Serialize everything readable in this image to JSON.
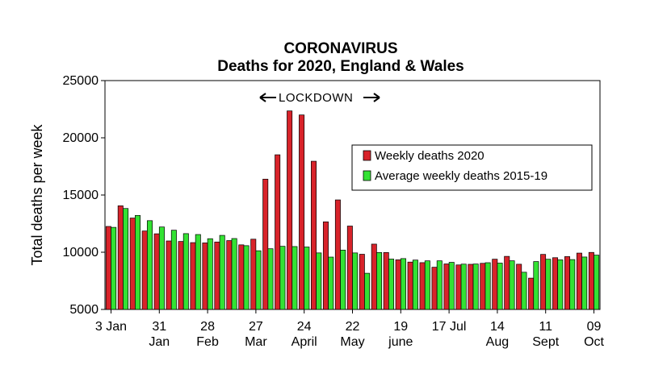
{
  "chart_data": {
    "type": "bar",
    "title": "CORONAVIRUS",
    "subtitle": "Deaths for 2020, England & Wales",
    "ylabel": "Total deaths per week",
    "xlabel": "",
    "ylim": [
      5000,
      25000
    ],
    "yticks": [
      "25000",
      "20000",
      "15000",
      "10000",
      "5000"
    ],
    "grid": false,
    "legend_position": "right",
    "annotation": "LOCKDOWN",
    "x_tick_labels": [
      {
        "index": 0,
        "day": "3 Jan",
        "month": ""
      },
      {
        "index": 4,
        "day": "31",
        "month": "Jan"
      },
      {
        "index": 8,
        "day": "28",
        "month": "Feb"
      },
      {
        "index": 12,
        "day": "27",
        "month": "Mar"
      },
      {
        "index": 16,
        "day": "24",
        "month": "April"
      },
      {
        "index": 20,
        "day": "22",
        "month": "May"
      },
      {
        "index": 24,
        "day": "19",
        "month": "june"
      },
      {
        "index": 28,
        "day": "17 Jul",
        "month": ""
      },
      {
        "index": 32,
        "day": "14",
        "month": "Aug"
      },
      {
        "index": 36,
        "day": "11",
        "month": "Sept"
      },
      {
        "index": 40,
        "day": "09",
        "month": "Oct"
      }
    ],
    "series": [
      {
        "name": "Weekly deaths 2020",
        "color": "#d8232a",
        "values": [
          12254,
          14058,
          12990,
          11856,
          11612,
          10986,
          10944,
          10841,
          10816,
          10895,
          11019,
          10645,
          11141,
          16387,
          18516,
          22351,
          21997,
          17953,
          12657,
          14573,
          12288,
          9824,
          10709,
          9976,
          9339,
          9140,
          9090,
          8690,
          8979,
          8891,
          8946,
          9032,
          9392,
          9639,
          8952,
          7739,
          9811,
          9523,
          9618,
          9925,
          9984
        ]
      },
      {
        "name": "Average weekly deaths 2015-19",
        "color": "#33e233",
        "values": [
          12175,
          13822,
          13216,
          12760,
          12206,
          11925,
          11627,
          11548,
          11183,
          11474,
          11197,
          10573,
          10130,
          10305,
          10520,
          10497,
          10458,
          9941,
          9576,
          10188,
          9940,
          8162,
          9977,
          9404,
          9445,
          9316,
          9248,
          9251,
          9118,
          8961,
          8972,
          9085,
          9051,
          9254,
          8252,
          9186,
          9387,
          9334,
          9359,
          9583,
          9747
        ]
      }
    ]
  }
}
